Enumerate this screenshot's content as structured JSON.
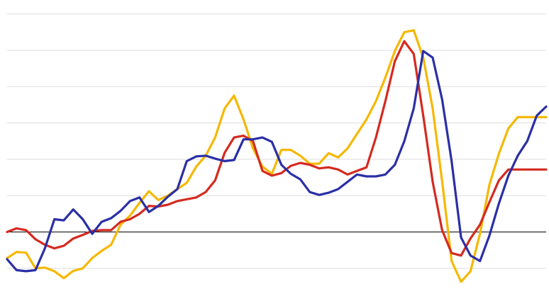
{
  "chart_data": {
    "type": "line",
    "title": "",
    "xlabel": "",
    "ylabel": "",
    "legend": "none",
    "grid": true,
    "gridlines_y": [
      -1,
      1,
      2,
      3,
      4,
      5,
      6
    ],
    "baseline_y": 0,
    "xlim": [
      0,
      57
    ],
    "ylim": [
      -2,
      6
    ],
    "x": [
      0,
      1,
      2,
      3,
      4,
      5,
      6,
      7,
      8,
      9,
      10,
      11,
      12,
      13,
      14,
      15,
      16,
      17,
      18,
      19,
      20,
      21,
      22,
      23,
      24,
      25,
      26,
      27,
      28,
      29,
      30,
      31,
      32,
      33,
      34,
      35,
      36,
      37,
      38,
      39,
      40,
      41,
      42,
      43,
      44,
      45,
      46,
      47,
      48,
      49,
      50,
      51,
      52,
      53,
      54,
      55,
      56,
      57
    ],
    "series": [
      {
        "color": "#f5b800",
        "values": [
          -0.72,
          -0.55,
          -0.57,
          -1.0,
          -0.98,
          -1.08,
          -1.27,
          -1.07,
          -1.0,
          -0.72,
          -0.52,
          -0.35,
          0.2,
          0.45,
          0.8,
          1.12,
          0.88,
          1.0,
          1.18,
          1.35,
          1.8,
          2.1,
          2.6,
          3.4,
          3.75,
          3.1,
          2.3,
          1.8,
          1.6,
          2.26,
          2.26,
          2.1,
          1.88,
          1.88,
          2.17,
          2.05,
          2.3,
          2.7,
          3.1,
          3.6,
          4.25,
          4.98,
          5.5,
          5.55,
          4.8,
          3.4,
          1.4,
          -0.8,
          -1.37,
          -1.08,
          -0.05,
          1.3,
          2.15,
          2.85,
          3.16,
          3.16,
          3.16,
          3.16
        ]
      },
      {
        "color": "#d42a20",
        "values": [
          0.0,
          0.1,
          0.05,
          -0.2,
          -0.35,
          -0.45,
          -0.38,
          -0.18,
          -0.08,
          0.03,
          0.05,
          0.05,
          0.28,
          0.35,
          0.5,
          0.72,
          0.7,
          0.75,
          0.85,
          0.9,
          0.95,
          1.1,
          1.42,
          2.18,
          2.6,
          2.65,
          2.5,
          1.68,
          1.55,
          1.62,
          1.82,
          1.9,
          1.85,
          1.75,
          1.78,
          1.72,
          1.58,
          1.68,
          1.78,
          2.6,
          3.6,
          4.7,
          5.25,
          4.9,
          3.2,
          1.38,
          0.05,
          -0.58,
          -0.65,
          -0.18,
          0.2,
          0.82,
          1.42,
          1.72,
          1.72,
          1.72,
          1.72,
          1.72
        ]
      },
      {
        "color": "#2a2fa6",
        "values": [
          -0.75,
          -1.05,
          -1.08,
          -1.05,
          -0.45,
          0.35,
          0.32,
          0.62,
          0.35,
          -0.05,
          0.28,
          0.38,
          0.58,
          0.85,
          0.95,
          0.55,
          0.72,
          0.97,
          1.18,
          1.95,
          2.08,
          2.1,
          2.02,
          1.95,
          1.98,
          2.55,
          2.55,
          2.6,
          2.48,
          1.85,
          1.6,
          1.45,
          1.1,
          1.02,
          1.08,
          1.18,
          1.38,
          1.58,
          1.53,
          1.53,
          1.58,
          1.85,
          2.5,
          3.4,
          4.98,
          4.8,
          3.65,
          1.95,
          -0.15,
          -0.65,
          -0.8,
          -0.1,
          0.78,
          1.55,
          2.1,
          2.5,
          3.2,
          3.45
        ]
      }
    ]
  }
}
